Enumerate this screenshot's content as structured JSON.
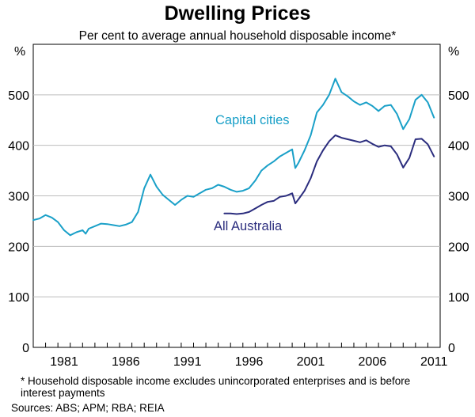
{
  "chart_data": {
    "type": "line",
    "title": "Dwelling Prices",
    "subtitle": "Per cent to average annual household disposable income*",
    "y_unit_left": "%",
    "y_unit_right": "%",
    "ylim": [
      0,
      600
    ],
    "yticks": [
      0,
      100,
      200,
      300,
      400,
      500
    ],
    "xlim": [
      1979.0,
      2012.0
    ],
    "xticks": [
      {
        "value": 1981.5,
        "label": "1981"
      },
      {
        "value": 1986.5,
        "label": "1986"
      },
      {
        "value": 1991.5,
        "label": "1991"
      },
      {
        "value": 1996.5,
        "label": "1996"
      },
      {
        "value": 2001.5,
        "label": "2001"
      },
      {
        "value": 2006.5,
        "label": "2006"
      },
      {
        "value": 2011.5,
        "label": "2011"
      }
    ],
    "series": [
      {
        "name": "Capital cities",
        "color": "#1aa0c8",
        "x": [
          1979.0,
          1979.5,
          1980.0,
          1980.5,
          1981.0,
          1981.5,
          1982.0,
          1982.5,
          1983.0,
          1983.25,
          1983.5,
          1984.0,
          1984.5,
          1985.0,
          1985.5,
          1986.0,
          1986.5,
          1987.0,
          1987.5,
          1988.0,
          1988.5,
          1989.0,
          1989.5,
          1990.0,
          1990.5,
          1991.0,
          1991.5,
          1992.0,
          1992.5,
          1993.0,
          1993.5,
          1994.0,
          1994.5,
          1995.0,
          1995.5,
          1996.0,
          1996.5,
          1997.0,
          1997.5,
          1998.0,
          1998.5,
          1999.0,
          1999.5,
          2000.0,
          2000.25,
          2000.5,
          2001.0,
          2001.5,
          2002.0,
          2002.5,
          2003.0,
          2003.5,
          2004.0,
          2004.5,
          2005.0,
          2005.5,
          2006.0,
          2006.5,
          2007.0,
          2007.5,
          2008.0,
          2008.5,
          2009.0,
          2009.5,
          2010.0,
          2010.5,
          2011.0,
          2011.5
        ],
        "y": [
          252,
          255,
          262,
          257,
          248,
          232,
          222,
          228,
          232,
          225,
          235,
          240,
          245,
          244,
          242,
          240,
          243,
          248,
          268,
          315,
          342,
          318,
          302,
          292,
          282,
          292,
          300,
          298,
          305,
          312,
          315,
          322,
          318,
          312,
          308,
          310,
          315,
          330,
          350,
          360,
          368,
          378,
          385,
          392,
          355,
          365,
          390,
          420,
          465,
          480,
          500,
          532,
          505,
          497,
          487,
          480,
          485,
          478,
          468,
          478,
          480,
          462,
          432,
          452,
          490,
          500,
          485,
          455
        ]
      },
      {
        "name": "All Australia",
        "color": "#2b2d7e",
        "x": [
          1994.5,
          1995.0,
          1995.5,
          1996.0,
          1996.5,
          1997.0,
          1997.5,
          1998.0,
          1998.5,
          1999.0,
          1999.5,
          2000.0,
          2000.25,
          2000.5,
          2001.0,
          2001.5,
          2002.0,
          2002.5,
          2003.0,
          2003.5,
          2004.0,
          2004.5,
          2005.0,
          2005.5,
          2006.0,
          2006.5,
          2007.0,
          2007.5,
          2008.0,
          2008.5,
          2009.0,
          2009.5,
          2010.0,
          2010.5,
          2011.0,
          2011.5
        ],
        "y": [
          265,
          265,
          264,
          265,
          268,
          275,
          282,
          288,
          290,
          298,
          300,
          305,
          285,
          293,
          310,
          335,
          368,
          390,
          408,
          420,
          415,
          412,
          409,
          406,
          410,
          403,
          397,
          400,
          398,
          382,
          356,
          375,
          412,
          413,
          402,
          378
        ]
      }
    ],
    "series_labels": [
      {
        "text": "Capital cities",
        "series": "Capital cities"
      },
      {
        "text": "All Australia",
        "series": "All Australia"
      }
    ],
    "footnote": "*   Household disposable income excludes unincorporated enterprises and is before interest payments",
    "sources": "Sources: ABS; APM; RBA; REIA"
  }
}
